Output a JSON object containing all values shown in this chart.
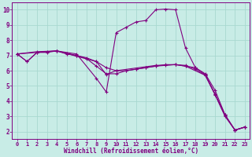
{
  "xlabel": "Windchill (Refroidissement éolien,°C)",
  "bg_color": "#c8ece6",
  "line_color": "#800080",
  "grid_color": "#a8d8d0",
  "spine_color": "#800080",
  "xlim": [
    -0.5,
    23.5
  ],
  "ylim": [
    1.5,
    10.5
  ],
  "xticks": [
    0,
    1,
    2,
    3,
    4,
    5,
    6,
    7,
    8,
    9,
    10,
    11,
    12,
    13,
    14,
    15,
    16,
    17,
    18,
    19,
    20,
    21,
    22,
    23
  ],
  "yticks": [
    2,
    3,
    4,
    5,
    6,
    7,
    8,
    9,
    10
  ],
  "series1": [
    [
      0,
      7.1
    ],
    [
      1,
      6.6
    ],
    [
      2,
      7.2
    ],
    [
      3,
      7.2
    ],
    [
      4,
      7.3
    ],
    [
      5,
      7.1
    ],
    [
      6,
      7.0
    ],
    [
      7,
      6.8
    ],
    [
      8,
      6.3
    ],
    [
      9,
      5.8
    ],
    [
      10,
      5.8
    ],
    [
      11,
      6.0
    ],
    [
      12,
      6.1
    ],
    [
      13,
      6.2
    ],
    [
      14,
      6.3
    ],
    [
      15,
      6.4
    ],
    [
      16,
      6.4
    ],
    [
      17,
      6.3
    ],
    [
      18,
      6.2
    ],
    [
      19,
      5.8
    ],
    [
      20,
      4.7
    ],
    [
      21,
      3.1
    ],
    [
      22,
      2.1
    ],
    [
      23,
      2.3
    ]
  ],
  "series2": [
    [
      0,
      7.1
    ],
    [
      1,
      6.6
    ],
    [
      2,
      7.2
    ],
    [
      3,
      7.25
    ],
    [
      4,
      7.3
    ],
    [
      5,
      7.15
    ],
    [
      6,
      7.0
    ],
    [
      7,
      6.85
    ],
    [
      8,
      6.6
    ],
    [
      9,
      6.2
    ],
    [
      10,
      6.0
    ],
    [
      11,
      6.0
    ],
    [
      12,
      6.1
    ],
    [
      13,
      6.2
    ],
    [
      14,
      6.3
    ],
    [
      15,
      6.35
    ],
    [
      16,
      6.4
    ],
    [
      17,
      6.35
    ],
    [
      18,
      6.1
    ],
    [
      19,
      5.7
    ],
    [
      20,
      4.4
    ],
    [
      21,
      3.0
    ],
    [
      22,
      2.1
    ],
    [
      23,
      2.3
    ]
  ],
  "series3": [
    [
      0,
      7.1
    ],
    [
      2,
      7.25
    ],
    [
      4,
      7.3
    ],
    [
      6,
      7.1
    ],
    [
      8,
      5.5
    ],
    [
      9,
      4.6
    ],
    [
      10,
      8.5
    ],
    [
      11,
      8.85
    ],
    [
      12,
      9.2
    ],
    [
      13,
      9.3
    ],
    [
      14,
      10.0
    ],
    [
      15,
      10.05
    ],
    [
      16,
      10.0
    ],
    [
      17,
      7.5
    ],
    [
      18,
      6.2
    ],
    [
      19,
      5.75
    ],
    [
      20,
      4.45
    ],
    [
      21,
      3.1
    ],
    [
      22,
      2.1
    ],
    [
      23,
      2.3
    ]
  ],
  "series4": [
    [
      0,
      7.1
    ],
    [
      4,
      7.3
    ],
    [
      8,
      6.6
    ],
    [
      9,
      5.75
    ],
    [
      10,
      6.0
    ],
    [
      14,
      6.35
    ],
    [
      16,
      6.4
    ],
    [
      17,
      6.3
    ],
    [
      19,
      5.7
    ],
    [
      20,
      4.45
    ],
    [
      21,
      3.05
    ],
    [
      22,
      2.1
    ],
    [
      23,
      2.3
    ]
  ]
}
